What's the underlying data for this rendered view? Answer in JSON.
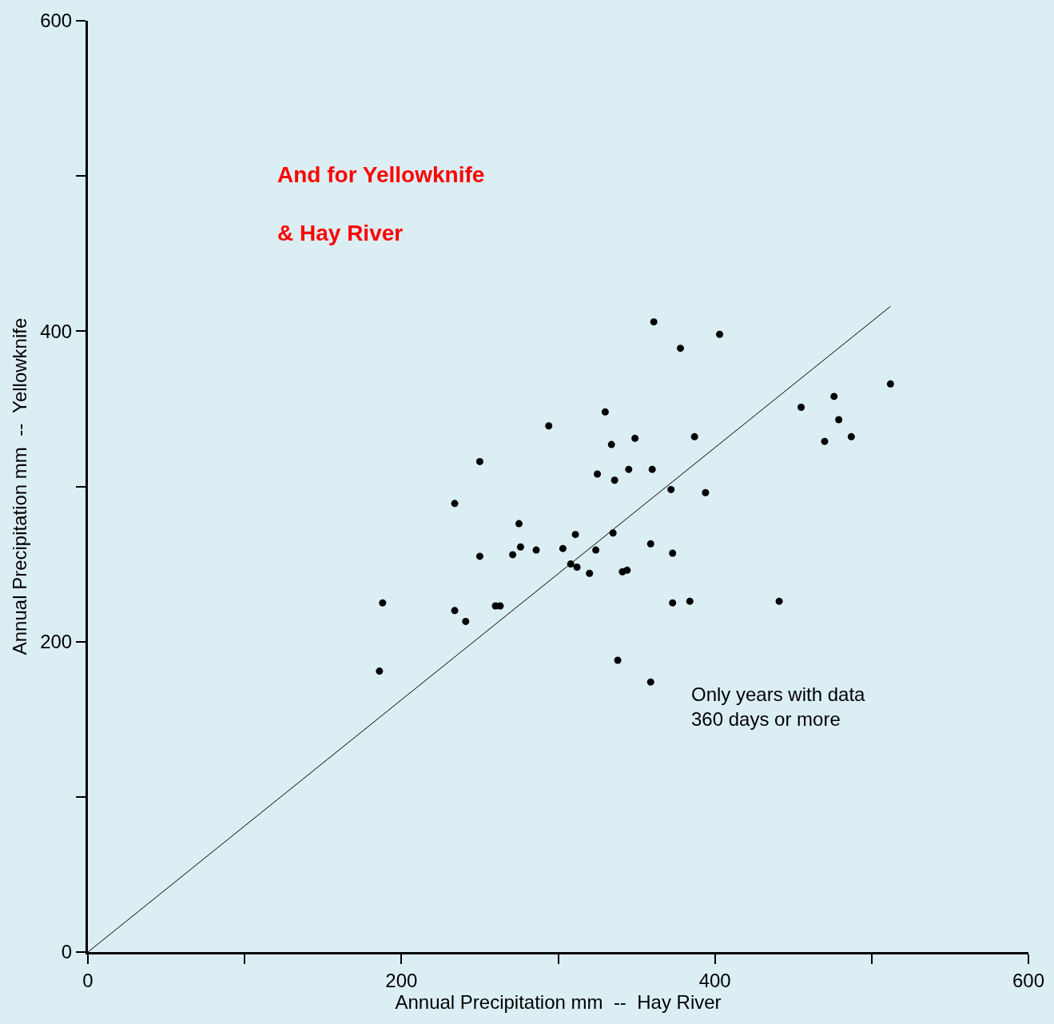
{
  "chart_data": {
    "type": "scatter",
    "title": "And for Yellowknife\n& Hay River",
    "xlabel": "Annual Precipitation mm  --  Hay River",
    "ylabel": "Annual Precipitation mm  --  Yellowknife",
    "annotations": [
      "Only years with data\n360 days or more"
    ],
    "xlim": [
      0,
      600
    ],
    "ylim": [
      0,
      600
    ],
    "xticks": [
      0,
      {
        "value": 100,
        "label": null
      },
      200,
      {
        "value": 300,
        "label": null
      },
      400,
      {
        "value": 500,
        "label": null
      },
      600
    ],
    "yticks": [
      0,
      {
        "value": 100,
        "label": null
      },
      200,
      {
        "value": 300,
        "label": null
      },
      400,
      {
        "value": 500,
        "label": null
      },
      600
    ],
    "grid": false,
    "marker": "circle",
    "series": [
      {
        "color": "#000000",
        "x": [
          188,
          186,
          234,
          234,
          241,
          250,
          250,
          260,
          263,
          271,
          275,
          276,
          286,
          294,
          303,
          308,
          311,
          312,
          320,
          324,
          325,
          330,
          334,
          335,
          336,
          338,
          341,
          344,
          345,
          349,
          359,
          359,
          360,
          361,
          372,
          373,
          373,
          378,
          384,
          387,
          394,
          403,
          441,
          455,
          470,
          476,
          479,
          487,
          512
        ],
        "values": [
          225,
          181,
          289,
          220,
          213,
          316,
          255,
          223,
          223,
          256,
          276,
          261,
          259,
          339,
          260,
          250,
          269,
          248,
          244,
          259,
          308,
          348,
          327,
          270,
          304,
          188,
          245,
          246,
          311,
          331,
          174,
          263,
          311,
          406,
          298,
          257,
          225,
          389,
          226,
          332,
          296,
          398,
          226,
          351,
          329,
          358,
          343,
          332,
          366
        ]
      },
      {
        "type": "line",
        "color": "#000000",
        "line_style": "solid",
        "marker": "none",
        "x": [
          0,
          512
        ],
        "values": [
          0,
          416
        ]
      }
    ]
  }
}
